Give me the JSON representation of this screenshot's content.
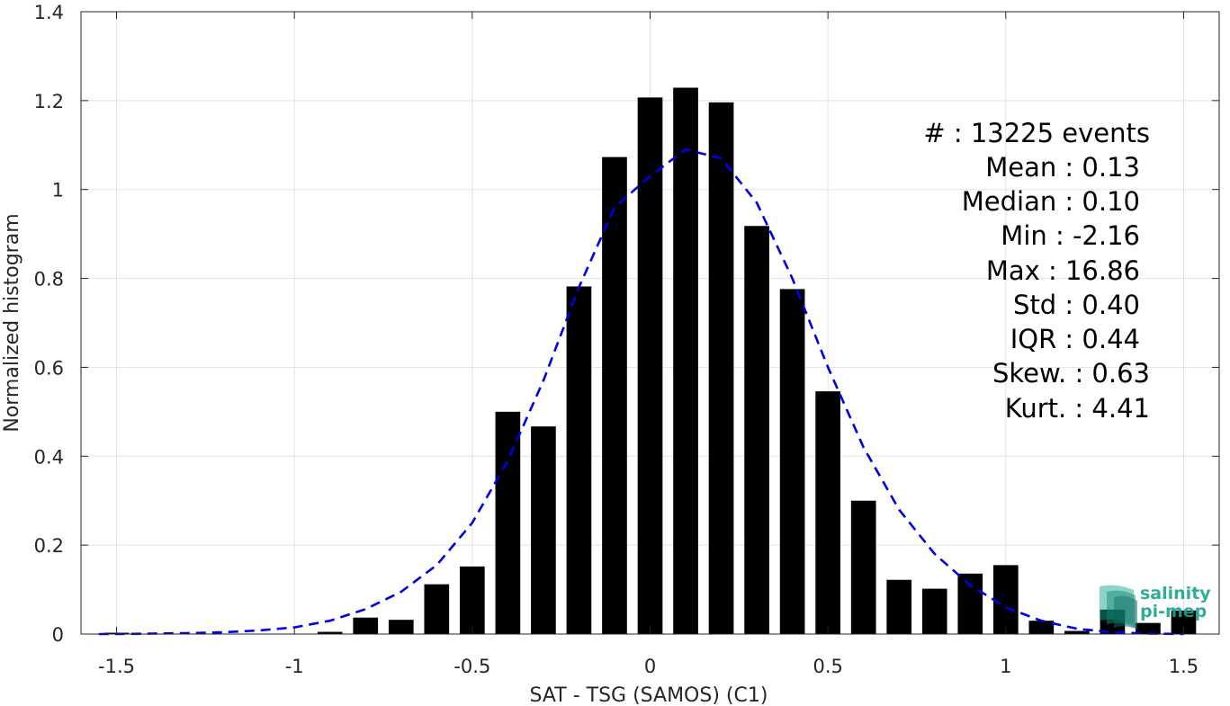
{
  "chart_data": {
    "type": "bar",
    "xlabel": "SAT - TSG (SAMOS) (C1)",
    "ylabel": "Normalized histogram",
    "xlim": [
      -1.6,
      1.6
    ],
    "ylim": [
      0,
      1.4
    ],
    "x_ticks": [
      -1.5,
      -1,
      -0.5,
      0,
      0.5,
      1,
      1.5
    ],
    "x_tick_labels": [
      "-1.5",
      "-1",
      "-0.5",
      "0",
      "0.5",
      "1",
      "1.5"
    ],
    "y_ticks": [
      0,
      0.2,
      0.4,
      0.6,
      0.8,
      1,
      1.2,
      1.4
    ],
    "y_tick_labels": [
      "0",
      "0.2",
      "0.4",
      "0.6",
      "0.8",
      "1",
      "1.2",
      "1.4"
    ],
    "grid": true,
    "bar_color": "#000000",
    "fit_color": "#0000e6",
    "bar_width": 0.07,
    "bars": [
      {
        "x": -1.5,
        "y": 0.003
      },
      {
        "x": -1.4,
        "y": 0.0
      },
      {
        "x": -1.3,
        "y": 0.0
      },
      {
        "x": -1.2,
        "y": 0.0
      },
      {
        "x": -1.1,
        "y": 0.0
      },
      {
        "x": -1.0,
        "y": 0.0
      },
      {
        "x": -0.9,
        "y": 0.005
      },
      {
        "x": -0.8,
        "y": 0.037
      },
      {
        "x": -0.7,
        "y": 0.032
      },
      {
        "x": -0.6,
        "y": 0.112
      },
      {
        "x": -0.5,
        "y": 0.152
      },
      {
        "x": -0.4,
        "y": 0.5
      },
      {
        "x": -0.3,
        "y": 0.467
      },
      {
        "x": -0.2,
        "y": 0.782
      },
      {
        "x": -0.1,
        "y": 1.073
      },
      {
        "x": 0.0,
        "y": 1.207
      },
      {
        "x": 0.1,
        "y": 1.229
      },
      {
        "x": 0.2,
        "y": 1.196
      },
      {
        "x": 0.3,
        "y": 0.918
      },
      {
        "x": 0.4,
        "y": 0.776
      },
      {
        "x": 0.5,
        "y": 0.546
      },
      {
        "x": 0.6,
        "y": 0.3
      },
      {
        "x": 0.7,
        "y": 0.122
      },
      {
        "x": 0.8,
        "y": 0.102
      },
      {
        "x": 0.9,
        "y": 0.136
      },
      {
        "x": 1.0,
        "y": 0.155
      },
      {
        "x": 1.1,
        "y": 0.03
      },
      {
        "x": 1.2,
        "y": 0.007
      },
      {
        "x": 1.3,
        "y": 0.055
      },
      {
        "x": 1.4,
        "y": 0.025
      },
      {
        "x": 1.5,
        "y": 0.053
      }
    ],
    "fit_curve": {
      "style": "dashed",
      "x": [
        -1.55,
        -1.5,
        -1.4,
        -1.3,
        -1.2,
        -1.1,
        -1.0,
        -0.9,
        -0.8,
        -0.7,
        -0.6,
        -0.5,
        -0.4,
        -0.3,
        -0.2,
        -0.1,
        0.0,
        0.1,
        0.2,
        0.3,
        0.4,
        0.5,
        0.6,
        0.7,
        0.8,
        0.9,
        1.0,
        1.1,
        1.2,
        1.3,
        1.4,
        1.5
      ],
      "y": [
        0.0,
        0.0,
        0.001,
        0.002,
        0.004,
        0.008,
        0.015,
        0.03,
        0.056,
        0.095,
        0.155,
        0.25,
        0.39,
        0.57,
        0.78,
        0.96,
        1.03,
        1.09,
        1.07,
        0.97,
        0.8,
        0.6,
        0.42,
        0.28,
        0.18,
        0.11,
        0.06,
        0.03,
        0.012,
        0.004,
        0.001,
        0.0
      ]
    }
  },
  "stats": [
    {
      "label": "#  : 13225 events"
    },
    {
      "label": "Mean : 0.13"
    },
    {
      "label": "Median : 0.10"
    },
    {
      "label": "Min : -2.16"
    },
    {
      "label": "Max : 16.86"
    },
    {
      "label": "Std : 0.40"
    },
    {
      "label": "IQR : 0.44"
    },
    {
      "label": "Skew. : 0.63"
    },
    {
      "label": "Kurt. : 4.41"
    }
  ],
  "logo": {
    "line1": "salinity",
    "line2": "pi-mep"
  }
}
